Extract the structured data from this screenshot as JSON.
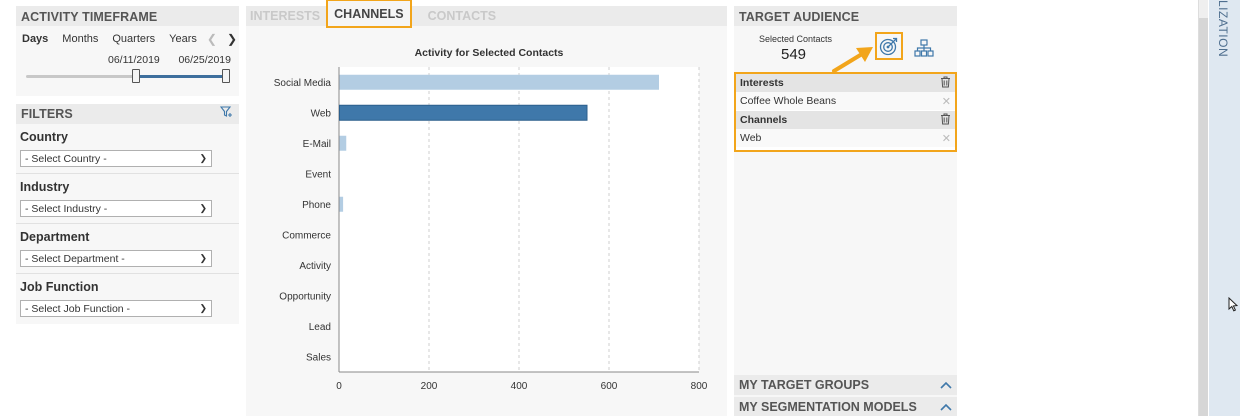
{
  "timeframe": {
    "title": "ACTIVITY TIMEFRAME",
    "tabs": [
      "Days",
      "Months",
      "Quarters",
      "Years"
    ],
    "active_tab": "Days",
    "start_date": "06/11/2019",
    "end_date": "06/25/2019"
  },
  "filters": {
    "title": "FILTERS",
    "groups": [
      {
        "label": "Country",
        "placeholder": "- Select Country -"
      },
      {
        "label": "Industry",
        "placeholder": "- Select Industry -"
      },
      {
        "label": "Department",
        "placeholder": "- Select Department -"
      },
      {
        "label": "Job Function",
        "placeholder": "- Select Job Function -"
      }
    ]
  },
  "center": {
    "tabs": [
      "INTERESTS",
      "CHANNELS",
      "CONTACTS"
    ],
    "active_tab": "CHANNELS"
  },
  "chart_data": {
    "type": "bar",
    "orientation": "horizontal",
    "title": "Activity for Selected Contacts",
    "categories": [
      "Social Media",
      "Web",
      "E-Mail",
      "Event",
      "Phone",
      "Commerce",
      "Activity",
      "Opportunity",
      "Lead",
      "Sales"
    ],
    "values": [
      710,
      550,
      15,
      0,
      8,
      0,
      0,
      0,
      0,
      0
    ],
    "highlighted": "Web",
    "xlim": [
      0,
      800
    ],
    "xticks": [
      0,
      200,
      400,
      600,
      800
    ],
    "grid": true,
    "colors": {
      "normal": "#b3cde3",
      "highlight": "#3f78aa"
    }
  },
  "audience": {
    "title": "TARGET AUDIENCE",
    "selected_label": "Selected Contacts",
    "selected_count": "549",
    "criteria": [
      {
        "group": "Interests",
        "items": [
          "Coffee Whole Beans"
        ]
      },
      {
        "group": "Channels",
        "items": [
          "Web"
        ]
      }
    ],
    "accordions": [
      "MY TARGET GROUPS",
      "MY SEGMENTATION MODELS"
    ]
  },
  "side_tab": {
    "label": "LIZATION"
  },
  "colors": {
    "accent": "#f2a51b",
    "brand": "#3f78aa"
  }
}
